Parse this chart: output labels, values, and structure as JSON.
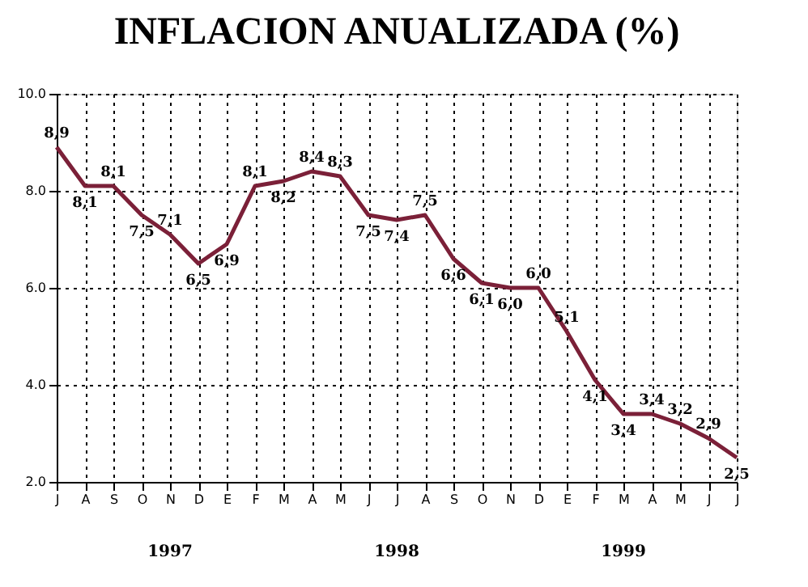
{
  "chart_data": {
    "type": "line",
    "title": "INFLACION ANUALIZADA (%)",
    "categories": [
      "J",
      "A",
      "S",
      "O",
      "N",
      "D",
      "E",
      "F",
      "M",
      "A",
      "M",
      "J",
      "J",
      "A",
      "S",
      "O",
      "N",
      "D",
      "E",
      "F",
      "M",
      "A",
      "M",
      "J",
      "J"
    ],
    "series": [
      {
        "color": "#7b2038",
        "values": [
          8.9,
          8.1,
          8.1,
          7.5,
          7.1,
          6.5,
          6.9,
          8.1,
          8.2,
          8.4,
          8.3,
          7.5,
          7.4,
          7.5,
          6.6,
          6.1,
          6.0,
          6.0,
          5.1,
          4.1,
          3.4,
          3.4,
          3.2,
          2.9,
          2.5
        ],
        "value_labels": [
          "8,9",
          "8,1",
          "8,1",
          "7,5",
          "7,1",
          "6,5",
          "6,9",
          "8,1",
          "8,2",
          "8,4",
          "8,3",
          "7,5",
          "7,4",
          "7,5",
          "6,6",
          "6,1",
          "6,0",
          "6,0",
          "5,1",
          "4,1",
          "3,4",
          "3,4",
          "3,2",
          "2,9",
          "2,5"
        ]
      }
    ],
    "ylim": [
      2.0,
      10.0
    ],
    "yticks": [
      {
        "value": 2,
        "label": "2.0"
      },
      {
        "value": 4,
        "label": "4.0"
      },
      {
        "value": 6,
        "label": "6.0"
      },
      {
        "value": 8,
        "label": "8.0"
      },
      {
        "value": 10,
        "label": "10.0"
      }
    ],
    "grid": true,
    "marker": "none",
    "line_style": "solid",
    "annotations": [
      "1997",
      "1998",
      "1999"
    ]
  }
}
